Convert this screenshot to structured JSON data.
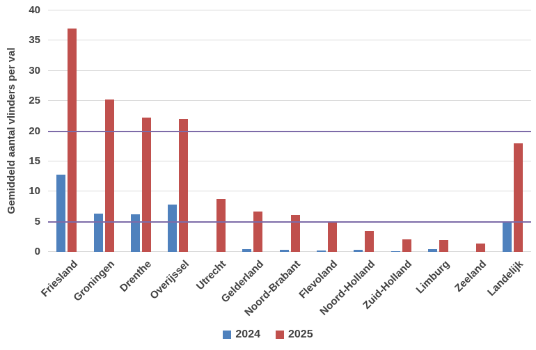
{
  "chart_data": {
    "type": "bar",
    "title": "",
    "xlabel": "",
    "ylabel": "Gemiddeld aantal vlinders per val",
    "ylim": [
      0,
      40
    ],
    "yticks": [
      0,
      5,
      10,
      15,
      20,
      25,
      30,
      35,
      40
    ],
    "grid": true,
    "reference_lines": [
      5,
      20
    ],
    "legend_position": "bottom-center",
    "categories": [
      "Friesland",
      "Groningen",
      "Drenthe",
      "Overijssel",
      "Utrecht",
      "Gelderland",
      "Noord-Brabant",
      "Flevoland",
      "Noord-Holland",
      "Zuid-Holland",
      "Limburg",
      "Zeeland",
      "Landelijk"
    ],
    "series": [
      {
        "name": "2024",
        "color": "#4F81BD",
        "values": [
          12.8,
          6.3,
          6.2,
          7.8,
          0,
          0.5,
          0.4,
          0.2,
          0.4,
          0.1,
          0.5,
          0,
          5.1
        ]
      },
      {
        "name": "2025",
        "color": "#C0504D",
        "values": [
          37.0,
          25.3,
          22.2,
          22.0,
          8.8,
          6.7,
          6.1,
          5.0,
          3.5,
          2.1,
          2.0,
          1.4,
          18.0
        ]
      }
    ]
  },
  "colors": {
    "gridline": "#D9D9D9",
    "reference_line": "#7D6BA8",
    "text": "#404040",
    "background": "#FFFFFF"
  }
}
